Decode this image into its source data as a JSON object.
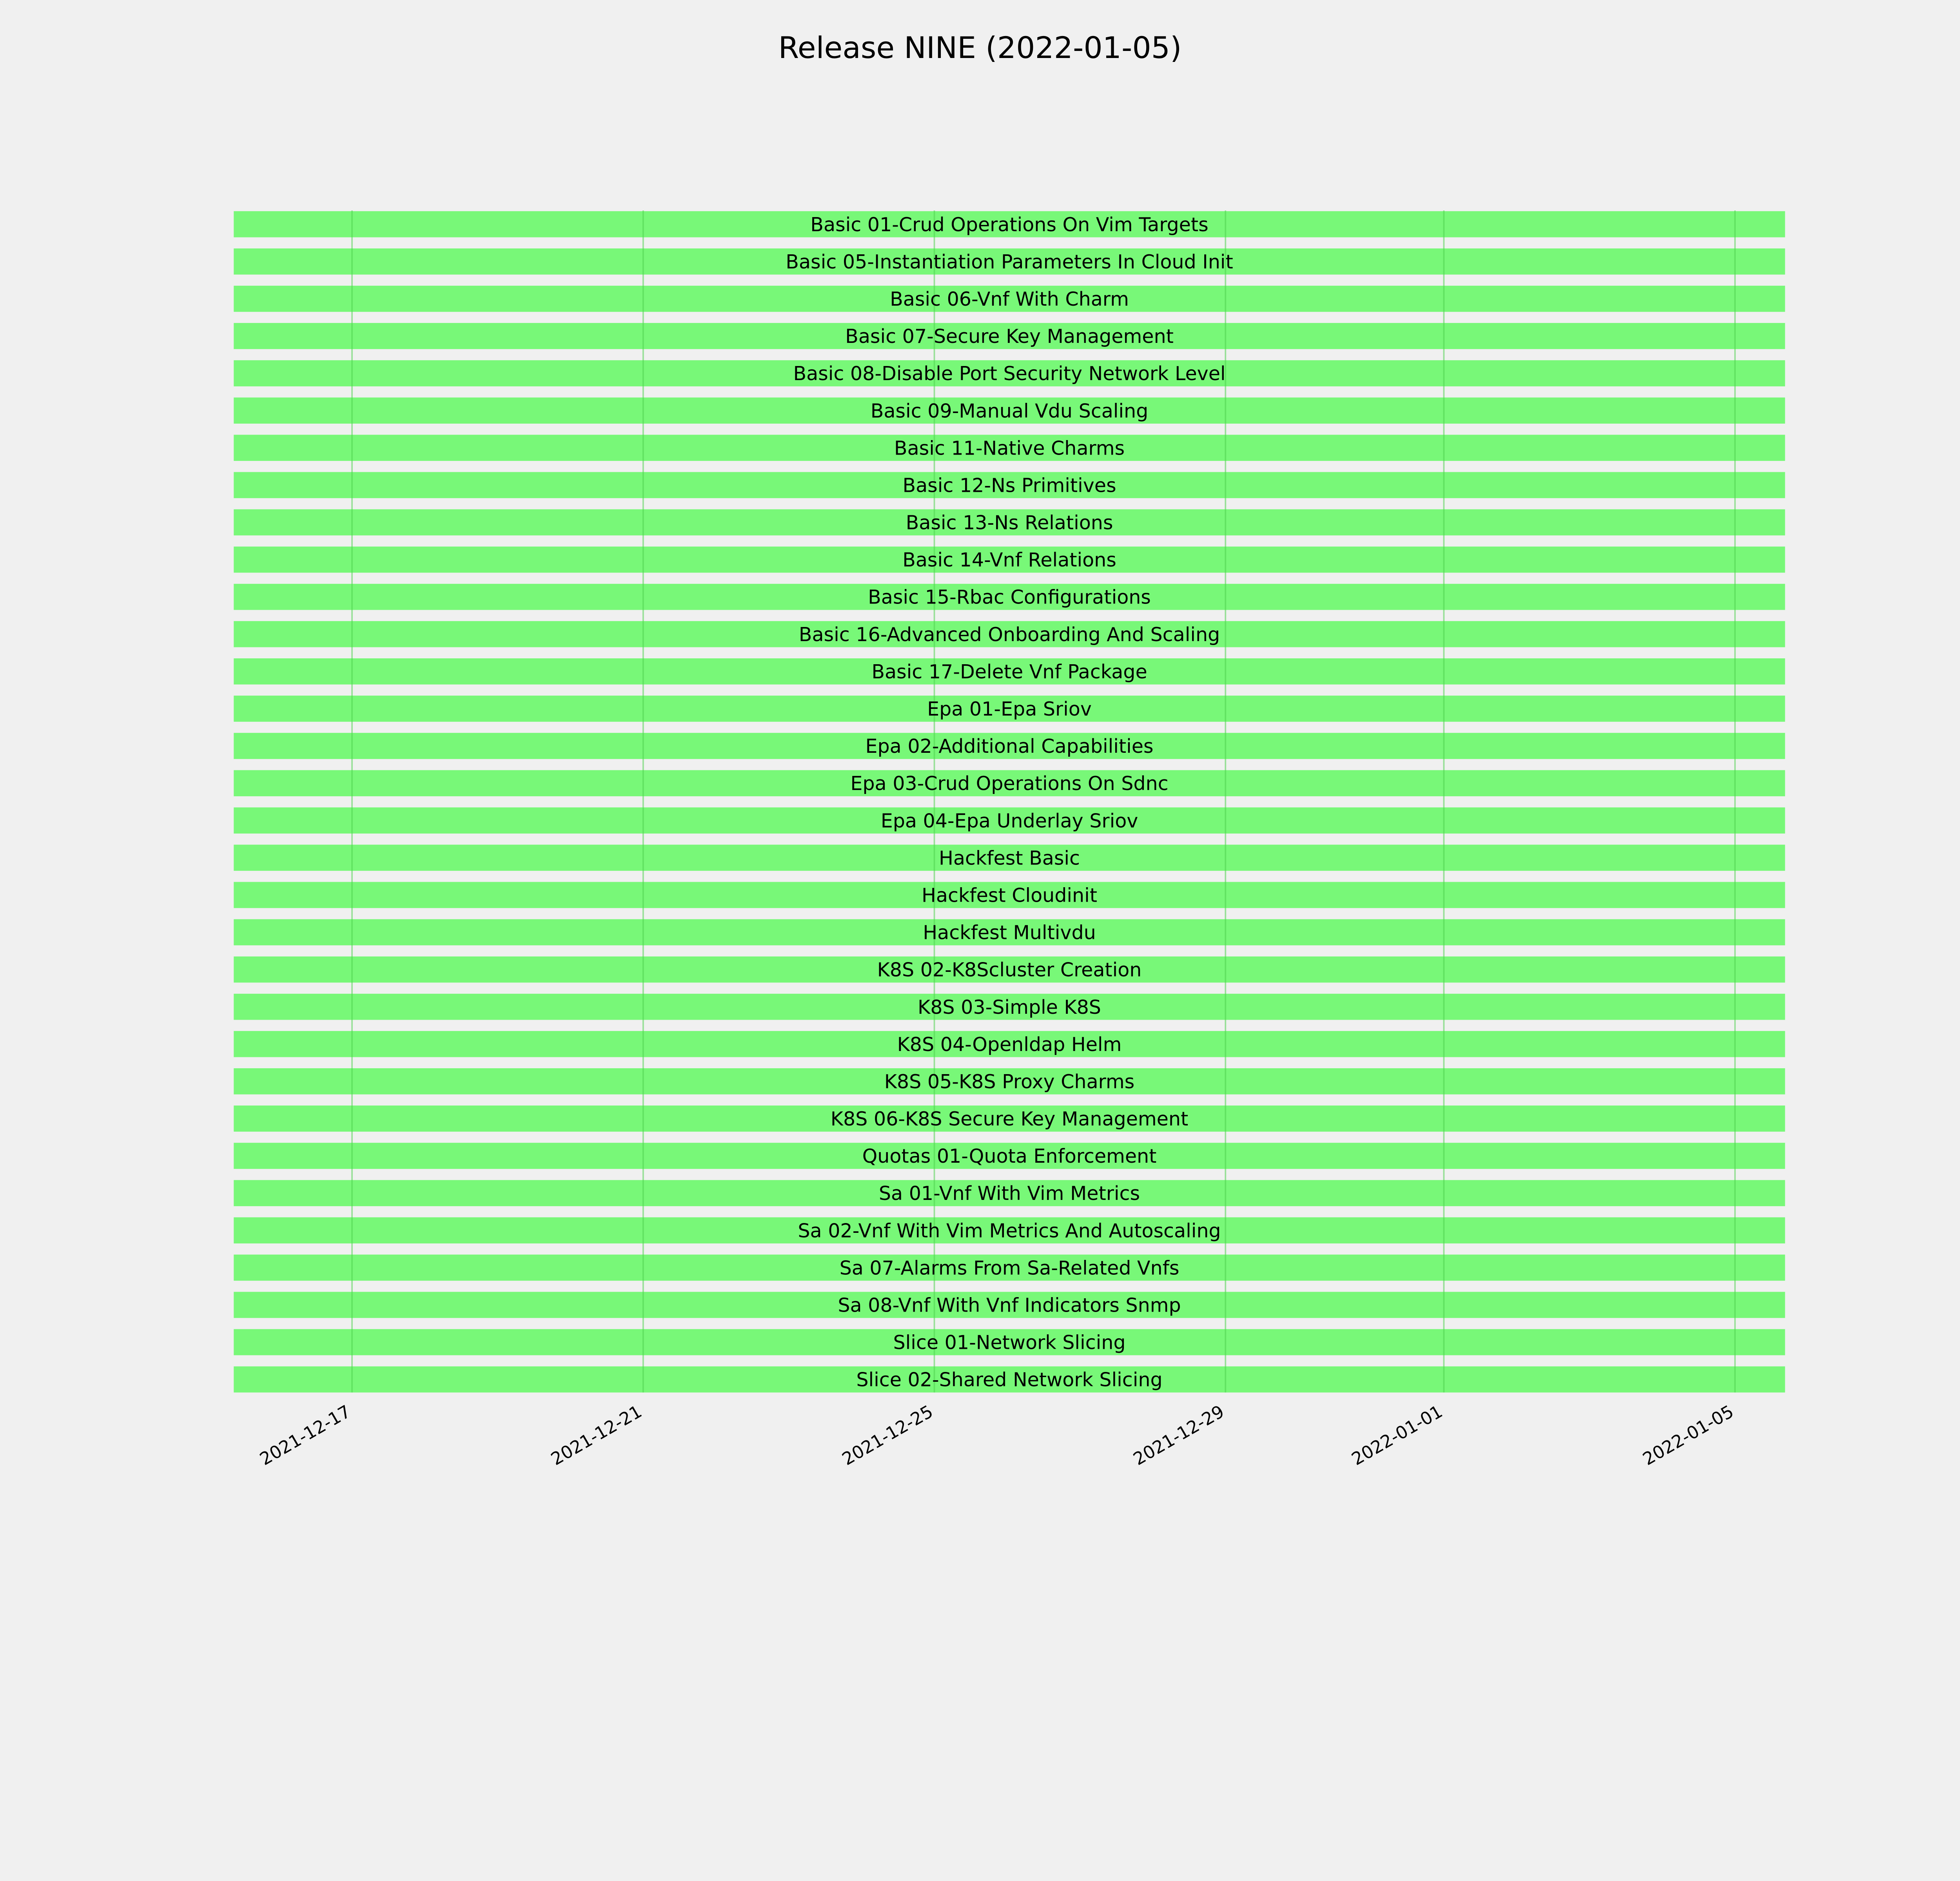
{
  "chart_data": {
    "type": "bar",
    "orientation": "horizontal-timeline",
    "title": "Release NINE (2022-01-05)",
    "xlabel": "",
    "ylabel": "",
    "xlim": [
      "2021-12-15T09:00",
      "2022-01-05T16:30"
    ],
    "x_ticks": [
      "2021-12-17",
      "2021-12-21",
      "2021-12-25",
      "2021-12-29",
      "2022-01-01",
      "2022-01-05"
    ],
    "grid": true,
    "legend": "none",
    "colors": {
      "bar": "#78f878",
      "grid": "#4fd24f",
      "background": "#f0f0f0"
    },
    "tasks": [
      {
        "label": "Basic 01-Crud Operations On Vim Targets",
        "start": "2021-12-15T09:00",
        "end": "2022-01-05T16:30"
      },
      {
        "label": "Basic 05-Instantiation Parameters In Cloud Init",
        "start": "2021-12-15T09:00",
        "end": "2022-01-05T16:30"
      },
      {
        "label": "Basic 06-Vnf With Charm",
        "start": "2021-12-15T09:00",
        "end": "2022-01-05T16:30"
      },
      {
        "label": "Basic 07-Secure Key Management",
        "start": "2021-12-15T09:00",
        "end": "2022-01-05T16:30"
      },
      {
        "label": "Basic 08-Disable Port Security Network Level",
        "start": "2021-12-15T09:00",
        "end": "2022-01-05T16:30"
      },
      {
        "label": "Basic 09-Manual Vdu Scaling",
        "start": "2021-12-15T09:00",
        "end": "2022-01-05T16:30"
      },
      {
        "label": "Basic 11-Native Charms",
        "start": "2021-12-15T09:00",
        "end": "2022-01-05T16:30"
      },
      {
        "label": "Basic 12-Ns Primitives",
        "start": "2021-12-15T09:00",
        "end": "2022-01-05T16:30"
      },
      {
        "label": "Basic 13-Ns Relations",
        "start": "2021-12-15T09:00",
        "end": "2022-01-05T16:30"
      },
      {
        "label": "Basic 14-Vnf Relations",
        "start": "2021-12-15T09:00",
        "end": "2022-01-05T16:30"
      },
      {
        "label": "Basic 15-Rbac Configurations",
        "start": "2021-12-15T09:00",
        "end": "2022-01-05T16:30"
      },
      {
        "label": "Basic 16-Advanced Onboarding And Scaling",
        "start": "2021-12-15T09:00",
        "end": "2022-01-05T16:30"
      },
      {
        "label": "Basic 17-Delete Vnf Package",
        "start": "2021-12-15T09:00",
        "end": "2022-01-05T16:30"
      },
      {
        "label": "Epa 01-Epa Sriov",
        "start": "2021-12-15T09:00",
        "end": "2022-01-05T16:30"
      },
      {
        "label": "Epa 02-Additional Capabilities",
        "start": "2021-12-15T09:00",
        "end": "2022-01-05T16:30"
      },
      {
        "label": "Epa 03-Crud Operations On Sdnc",
        "start": "2021-12-15T09:00",
        "end": "2022-01-05T16:30"
      },
      {
        "label": "Epa 04-Epa Underlay Sriov",
        "start": "2021-12-15T09:00",
        "end": "2022-01-05T16:30"
      },
      {
        "label": "Hackfest Basic",
        "start": "2021-12-15T09:00",
        "end": "2022-01-05T16:30"
      },
      {
        "label": "Hackfest Cloudinit",
        "start": "2021-12-15T09:00",
        "end": "2022-01-05T16:30"
      },
      {
        "label": "Hackfest Multivdu",
        "start": "2021-12-15T09:00",
        "end": "2022-01-05T16:30"
      },
      {
        "label": "K8S 02-K8Scluster Creation",
        "start": "2021-12-15T09:00",
        "end": "2022-01-05T16:30"
      },
      {
        "label": "K8S 03-Simple K8S",
        "start": "2021-12-15T09:00",
        "end": "2022-01-05T16:30"
      },
      {
        "label": "K8S 04-Openldap Helm",
        "start": "2021-12-15T09:00",
        "end": "2022-01-05T16:30"
      },
      {
        "label": "K8S 05-K8S Proxy Charms",
        "start": "2021-12-15T09:00",
        "end": "2022-01-05T16:30"
      },
      {
        "label": "K8S 06-K8S Secure Key Management",
        "start": "2021-12-15T09:00",
        "end": "2022-01-05T16:30"
      },
      {
        "label": "Quotas 01-Quota Enforcement",
        "start": "2021-12-15T09:00",
        "end": "2022-01-05T16:30"
      },
      {
        "label": "Sa 01-Vnf With Vim Metrics",
        "start": "2021-12-15T09:00",
        "end": "2022-01-05T16:30"
      },
      {
        "label": "Sa 02-Vnf With Vim Metrics And Autoscaling",
        "start": "2021-12-15T09:00",
        "end": "2022-01-05T16:30"
      },
      {
        "label": "Sa 07-Alarms From Sa-Related Vnfs",
        "start": "2021-12-15T09:00",
        "end": "2022-01-05T16:30"
      },
      {
        "label": "Sa 08-Vnf With Vnf Indicators Snmp",
        "start": "2021-12-15T09:00",
        "end": "2022-01-05T16:30"
      },
      {
        "label": "Slice 01-Network Slicing",
        "start": "2021-12-15T09:00",
        "end": "2022-01-05T16:30"
      },
      {
        "label": "Slice 02-Shared Network Slicing",
        "start": "2021-12-15T09:00",
        "end": "2022-01-05T16:30"
      }
    ]
  }
}
